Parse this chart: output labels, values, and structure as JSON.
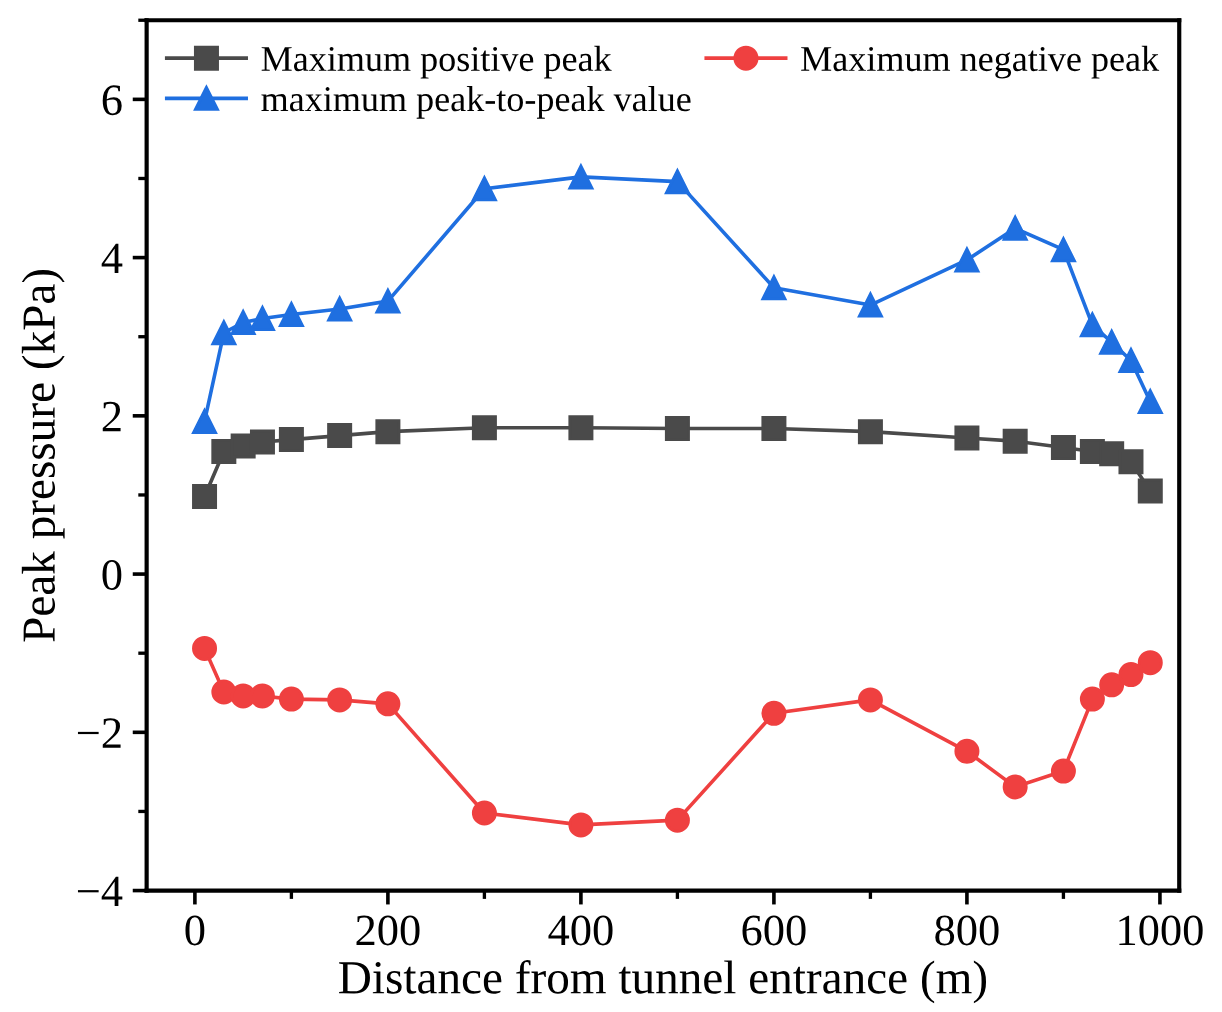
{
  "chart_data": {
    "type": "line",
    "xlabel": "Distance from tunnel entrance (m)",
    "ylabel": "Peak pressure (kPa)",
    "x": [
      10,
      30,
      50,
      70,
      100,
      150,
      200,
      300,
      400,
      500,
      600,
      700,
      800,
      850,
      900,
      930,
      950,
      970,
      990
    ],
    "series": [
      {
        "name": "Maximum positive peak",
        "color": "#4a4a4a",
        "marker": "square",
        "values": [
          0.98,
          1.55,
          1.62,
          1.67,
          1.7,
          1.75,
          1.8,
          1.85,
          1.85,
          1.84,
          1.84,
          1.8,
          1.72,
          1.68,
          1.6,
          1.55,
          1.52,
          1.42,
          1.05
        ]
      },
      {
        "name": "Maximum negative peak",
        "color": "#ef4040",
        "marker": "circle",
        "values": [
          -0.94,
          -1.49,
          -1.54,
          -1.54,
          -1.58,
          -1.59,
          -1.64,
          -3.02,
          -3.17,
          -3.11,
          -1.76,
          -1.59,
          -2.24,
          -2.69,
          -2.49,
          -1.58,
          -1.4,
          -1.27,
          -1.12
        ]
      },
      {
        "name": "maximum peak-to-peak value",
        "color": "#1f6fe0",
        "marker": "triangle",
        "values": [
          1.93,
          3.05,
          3.18,
          3.23,
          3.28,
          3.35,
          3.45,
          4.87,
          5.02,
          4.96,
          3.62,
          3.4,
          3.97,
          4.37,
          4.1,
          3.15,
          2.93,
          2.7,
          2.18
        ]
      }
    ],
    "xlim": [
      -50,
      1020
    ],
    "ylim": [
      -4,
      7
    ],
    "xticks": [
      0,
      200,
      400,
      600,
      800,
      1000
    ],
    "yticks": [
      -4,
      -2,
      0,
      2,
      4,
      6
    ],
    "grid": false,
    "legend": "top",
    "line_style": "solid"
  }
}
